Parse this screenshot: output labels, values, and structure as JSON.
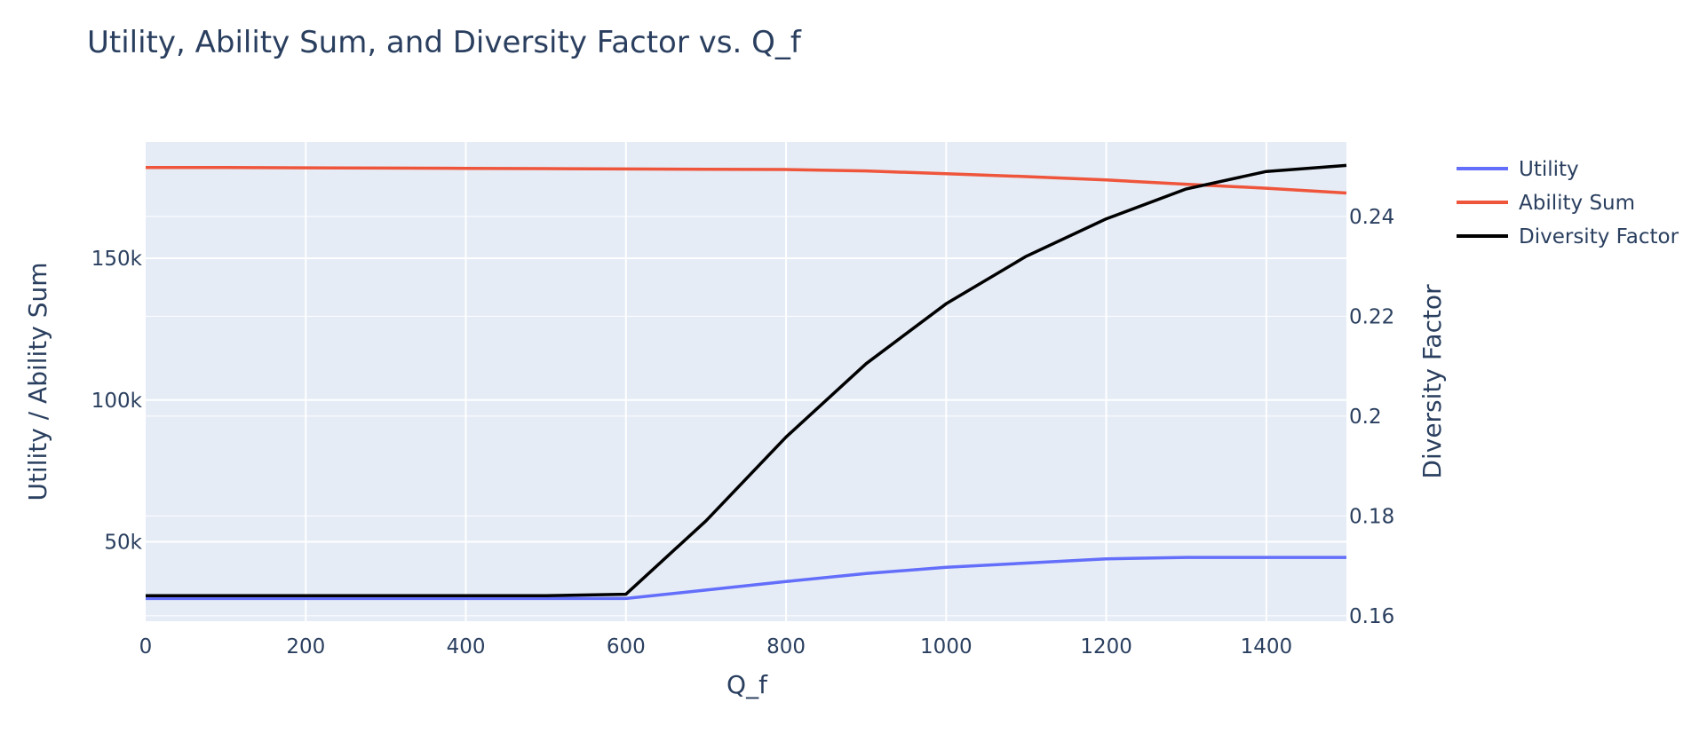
{
  "chart_data": {
    "type": "line",
    "title": "Utility, Ability Sum, and Diversity Factor vs. Q_f",
    "xlabel": "Q_f",
    "ylabel": "Utility / Ability Sum",
    "y2label": "Diversity Factor",
    "x": [
      0,
      100,
      200,
      300,
      400,
      500,
      600,
      700,
      800,
      900,
      1000,
      1100,
      1200,
      1300,
      1400,
      1500
    ],
    "xlim": [
      0,
      1500
    ],
    "ylim": [
      22000,
      191000
    ],
    "y2lim": [
      0.1589,
      0.2549
    ],
    "xticks": [
      "0",
      "200",
      "400",
      "600",
      "800",
      "1000",
      "1200",
      "1400"
    ],
    "xtick_values": [
      0,
      200,
      400,
      600,
      800,
      1000,
      1200,
      1400
    ],
    "yticks": [
      "50k",
      "100k",
      "150k"
    ],
    "ytick_values": [
      50000,
      100000,
      150000
    ],
    "y2ticks": [
      "0.16",
      "0.18",
      "0.2",
      "0.22",
      "0.24"
    ],
    "y2tick_values": [
      0.16,
      0.18,
      0.2,
      0.22,
      0.24
    ],
    "legend_position": "top-right outside",
    "grid": true,
    "series": [
      {
        "name": "Utility",
        "axis": "y",
        "color": "#636efa",
        "values": [
          30000,
          30000,
          30000,
          30000,
          30000,
          30000,
          30000,
          33000,
          36000,
          38800,
          41000,
          42500,
          44000,
          44500,
          44500,
          44500
        ]
      },
      {
        "name": "Ability Sum",
        "axis": "y",
        "color": "#ef553b",
        "values": [
          182000,
          182000,
          181900,
          181800,
          181700,
          181600,
          181500,
          181400,
          181300,
          180800,
          179800,
          178800,
          177600,
          176100,
          174700,
          173000
        ]
      },
      {
        "name": "Diversity Factor",
        "axis": "y2",
        "color": "#000000",
        "values": [
          0.164,
          0.164,
          0.164,
          0.164,
          0.164,
          0.164,
          0.1643,
          0.179,
          0.1958,
          0.2105,
          0.2225,
          0.232,
          0.2395,
          0.2455,
          0.249,
          0.2502
        ]
      }
    ]
  }
}
